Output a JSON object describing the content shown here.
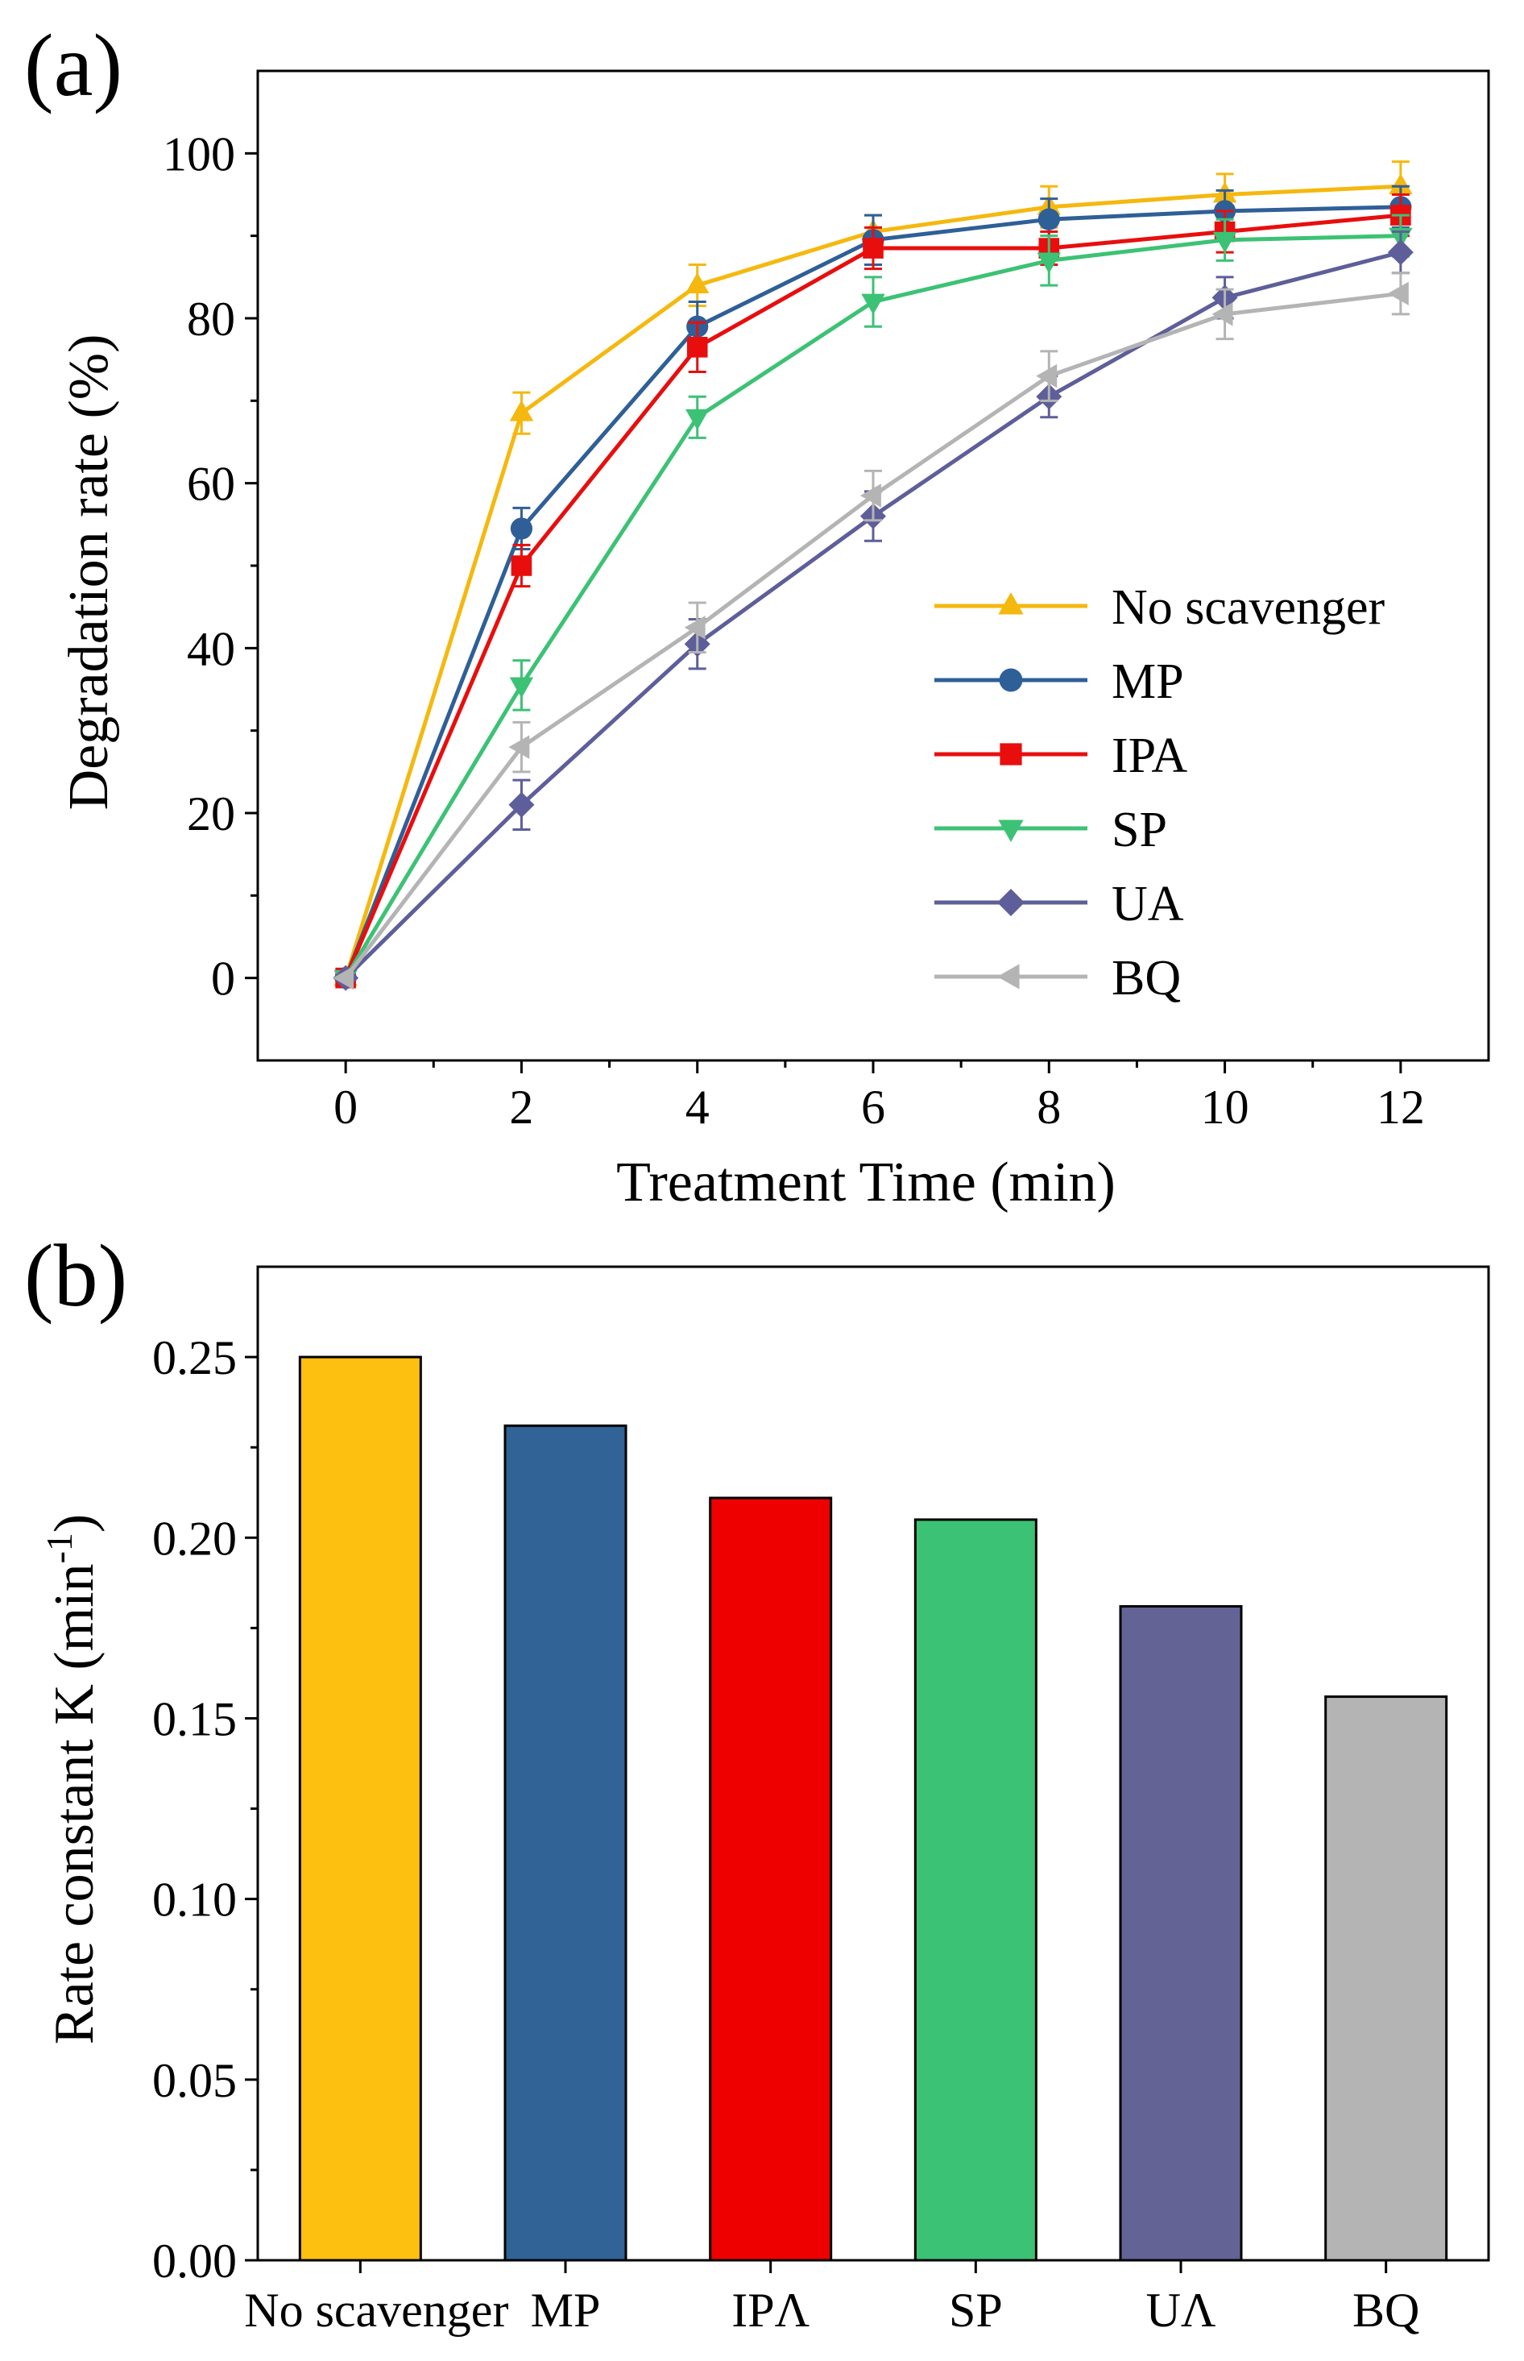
{
  "chart_data": [
    {
      "panel_label": "(a)",
      "type": "line",
      "xlabel": "Treatment Time (min)",
      "ylabel": "Degradation rate (%)",
      "xlim": [
        -1,
        13
      ],
      "ylim": [
        -10,
        110
      ],
      "xticks": [
        0,
        2,
        4,
        6,
        8,
        10,
        12
      ],
      "yticks": [
        0,
        20,
        40,
        60,
        80,
        100
      ],
      "x": [
        0,
        2,
        4,
        6,
        8,
        10,
        12
      ],
      "legend_position": "bottom-right",
      "series": [
        {
          "name": "No scavenger",
          "marker": "triangle-up",
          "color": "#F5B80E",
          "values": [
            0,
            68.5,
            84,
            90.5,
            93.5,
            95,
            96
          ],
          "errors": [
            0,
            2.5,
            2.5,
            2.0,
            2.5,
            2.5,
            3.0
          ]
        },
        {
          "name": "MP",
          "marker": "circle",
          "color": "#2F5F97",
          "values": [
            0,
            54.5,
            79,
            89.5,
            92,
            93,
            93.5
          ],
          "errors": [
            0,
            2.5,
            3.0,
            3.0,
            2.5,
            2.5,
            2.5
          ]
        },
        {
          "name": "IPA",
          "marker": "square",
          "color": "#E80E0E",
          "values": [
            0,
            50,
            76.5,
            88.5,
            88.5,
            90.5,
            92.5
          ],
          "errors": [
            0,
            2.5,
            3.0,
            2.5,
            2.0,
            2.5,
            2.5
          ]
        },
        {
          "name": "SP",
          "marker": "triangle-down",
          "color": "#3CC274",
          "values": [
            0,
            35.5,
            68,
            82,
            87,
            89.5,
            90
          ],
          "errors": [
            0,
            3.0,
            2.5,
            3.0,
            3.0,
            2.5,
            2.5
          ]
        },
        {
          "name": "UA",
          "marker": "diamond",
          "color": "#5E5E9A",
          "values": [
            0,
            21,
            40.5,
            56,
            70.5,
            82.5,
            88
          ],
          "errors": [
            0,
            3.0,
            3.0,
            3.0,
            2.5,
            2.5,
            2.5
          ]
        },
        {
          "name": "BQ",
          "marker": "triangle-left",
          "color": "#B4B4B4",
          "values": [
            0,
            28,
            42.5,
            58.5,
            73,
            80.5,
            83
          ],
          "errors": [
            0,
            3.0,
            3.0,
            3.0,
            3.0,
            3.0,
            2.5
          ]
        }
      ]
    },
    {
      "panel_label": "(b)",
      "type": "bar",
      "xlabel": "",
      "ylabel": "Rate constant K (min",
      "ylabel_sup": "-1",
      "ylabel_end": ")",
      "ylim": [
        0,
        0.275
      ],
      "yticks": [
        "0.00",
        "0.05",
        "0.10",
        "0.15",
        "0.20",
        "0.25"
      ],
      "categories": [
        "No scavenger",
        "MP",
        "IPΛ",
        "SP",
        "UΛ",
        "BQ"
      ],
      "values": [
        0.25,
        0.231,
        0.211,
        0.205,
        0.181,
        0.156
      ],
      "colors": [
        "#FDBF10",
        "#316396",
        "#EE0000",
        "#3CC274",
        "#636396",
        "#B4B4B4"
      ]
    }
  ]
}
